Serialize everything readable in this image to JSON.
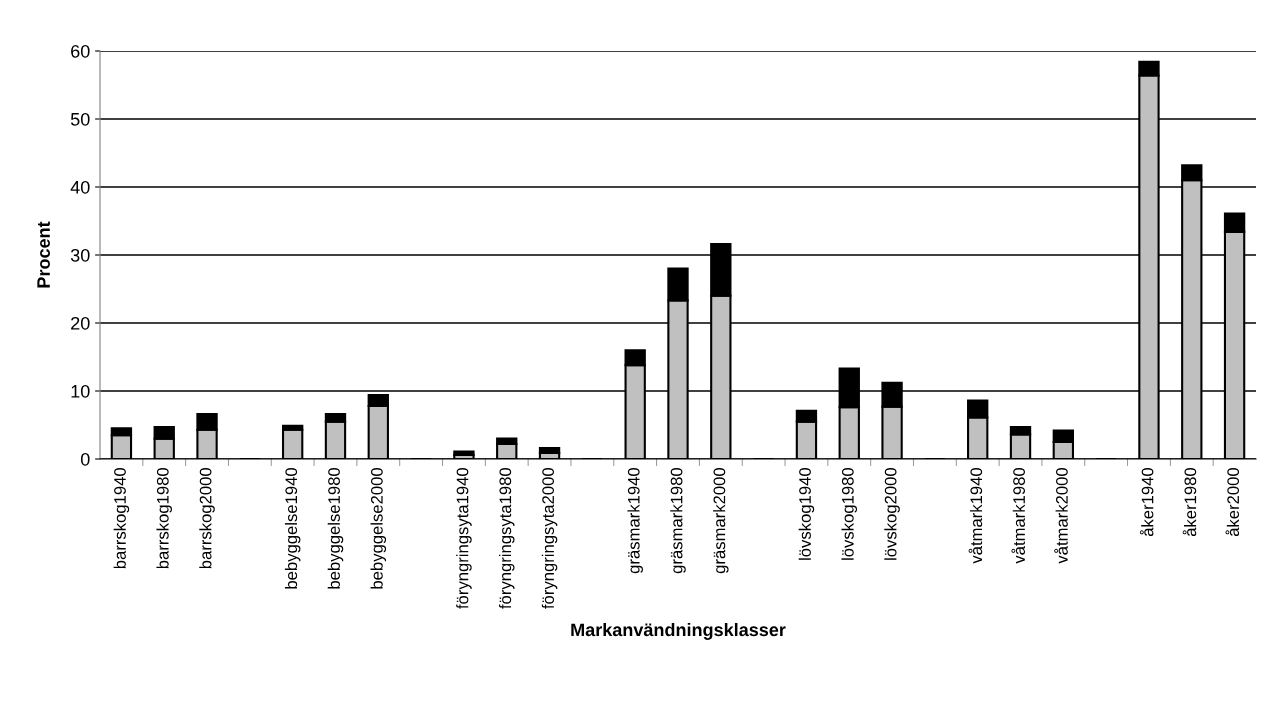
{
  "chart_data": {
    "type": "bar",
    "stacked": true,
    "xlabel": "Markanvändningsklasser",
    "ylabel": "Procent",
    "categories": [
      "barrskog1940",
      "barrskog1980",
      "barrskog2000",
      null,
      "bebyggelse1940",
      "bebyggelse1980",
      "bebyggelse2000",
      null,
      "föryngringsyta1940",
      "föryngringsyta1980",
      "föryngringsyta2000",
      null,
      "gräsmark1940",
      "gräsmark1980",
      "gräsmark2000",
      null,
      "lövskog1940",
      "lövskog1980",
      "lövskog2000",
      null,
      "våtmark1940",
      "våtmark1980",
      "våtmark2000",
      null,
      "åker1940",
      "åker1980",
      "åker2000"
    ],
    "series": [
      {
        "color": "#c0c0c0",
        "values": [
          3.5,
          3.0,
          4.3,
          null,
          4.3,
          5.5,
          7.8,
          null,
          0.6,
          2.2,
          0.9,
          null,
          13.8,
          23.3,
          24.0,
          null,
          5.5,
          7.6,
          7.7,
          null,
          6.1,
          3.6,
          2.5,
          null,
          56.4,
          41.0,
          33.4
        ]
      },
      {
        "color": "#000000",
        "values": [
          1.0,
          1.7,
          2.3,
          null,
          0.6,
          1.1,
          1.6,
          null,
          0.5,
          0.8,
          0.7,
          null,
          2.2,
          4.7,
          7.6,
          null,
          1.6,
          5.7,
          3.5,
          null,
          2.5,
          1.1,
          1.7,
          null,
          2.0,
          2.2,
          2.7
        ]
      }
    ],
    "ylim": [
      0,
      60
    ],
    "yticks": [
      0,
      10,
      20,
      30,
      40,
      50,
      60
    ],
    "grid": "y",
    "legend": false
  }
}
